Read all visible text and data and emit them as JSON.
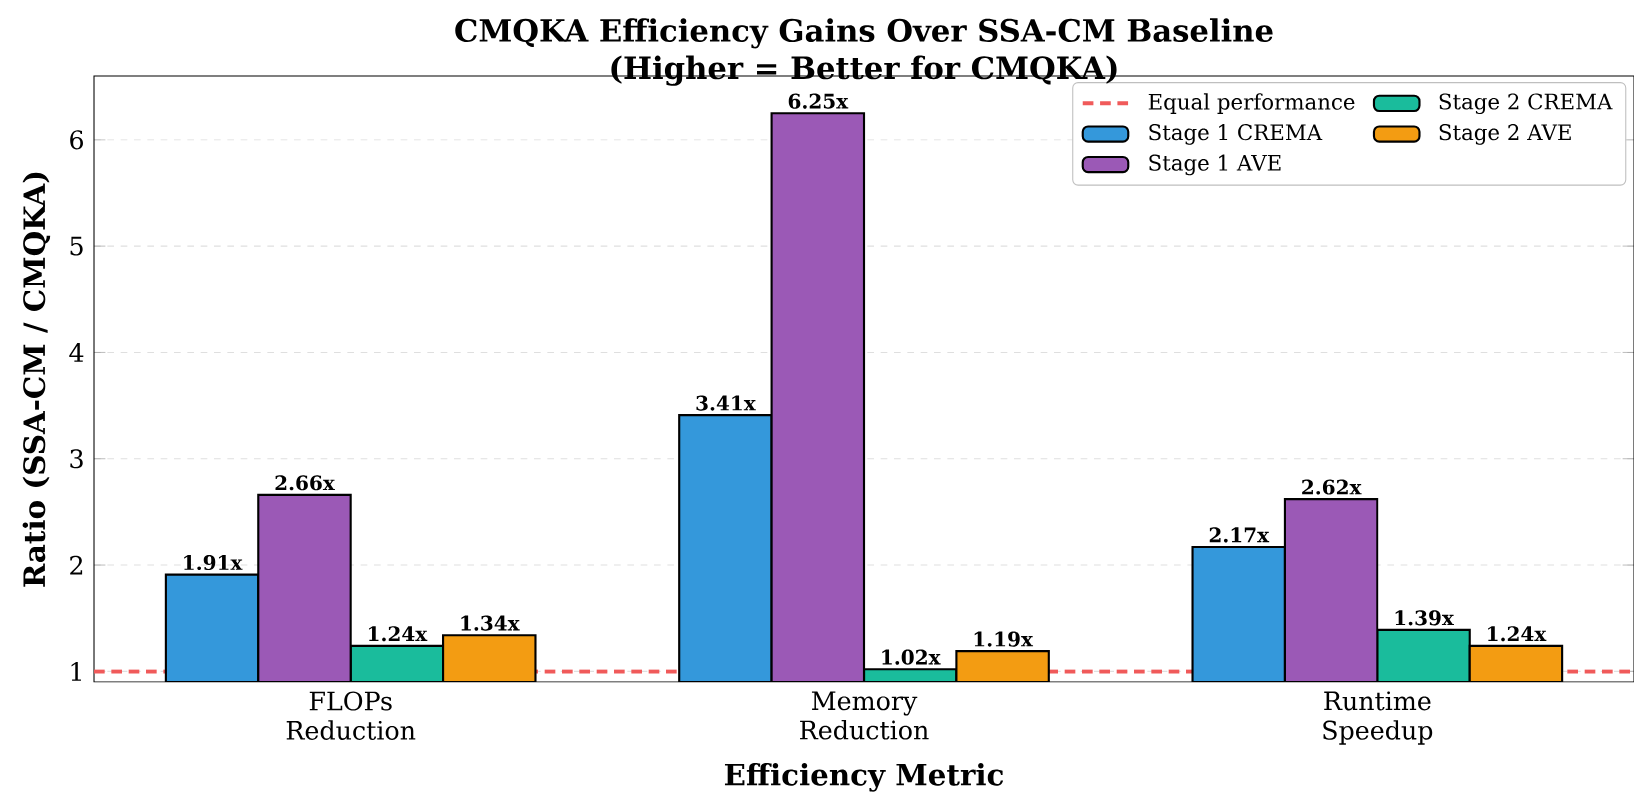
{
  "chart_data": {
    "type": "bar",
    "title": "CMQKA Efficiency Gains Over SSA-CM Baseline",
    "subtitle": "(Higher = Better for CMQKA)",
    "xlabel": "Efficiency Metric",
    "ylabel": "Ratio (SSA-CM / CMQKA)",
    "categories": [
      "FLOPs Reduction",
      "Memory Reduction",
      "Runtime Speedup"
    ],
    "series": [
      {
        "name": "Stage 1 CREMA",
        "color": "#3498db",
        "values": [
          1.91,
          3.41,
          2.17
        ],
        "value_labels": [
          "1.91x",
          "3.41x",
          "2.17x"
        ]
      },
      {
        "name": "Stage 1 AVE",
        "color": "#9b59b6",
        "values": [
          2.66,
          6.25,
          2.62
        ],
        "value_labels": [
          "2.66x",
          "6.25x",
          "2.62x"
        ]
      },
      {
        "name": "Stage 2 CREMA",
        "color": "#1abc9c",
        "values": [
          1.24,
          1.02,
          1.39
        ],
        "value_labels": [
          "1.24x",
          "1.02x",
          "1.39x"
        ]
      },
      {
        "name": "Stage 2 AVE",
        "color": "#f39c12",
        "values": [
          1.34,
          1.19,
          1.24
        ],
        "value_labels": [
          "1.34x",
          "1.19x",
          "1.24x"
        ]
      }
    ],
    "ref_lines": [
      {
        "axis": "y",
        "value": 1,
        "label": "Equal performance",
        "color": "#f05a5a",
        "line_style": "dashed"
      }
    ],
    "ylim": [
      0.9,
      6.6
    ],
    "yticks": [
      1,
      2,
      3,
      4,
      5,
      6
    ],
    "grid": "y",
    "legend": "top right"
  }
}
